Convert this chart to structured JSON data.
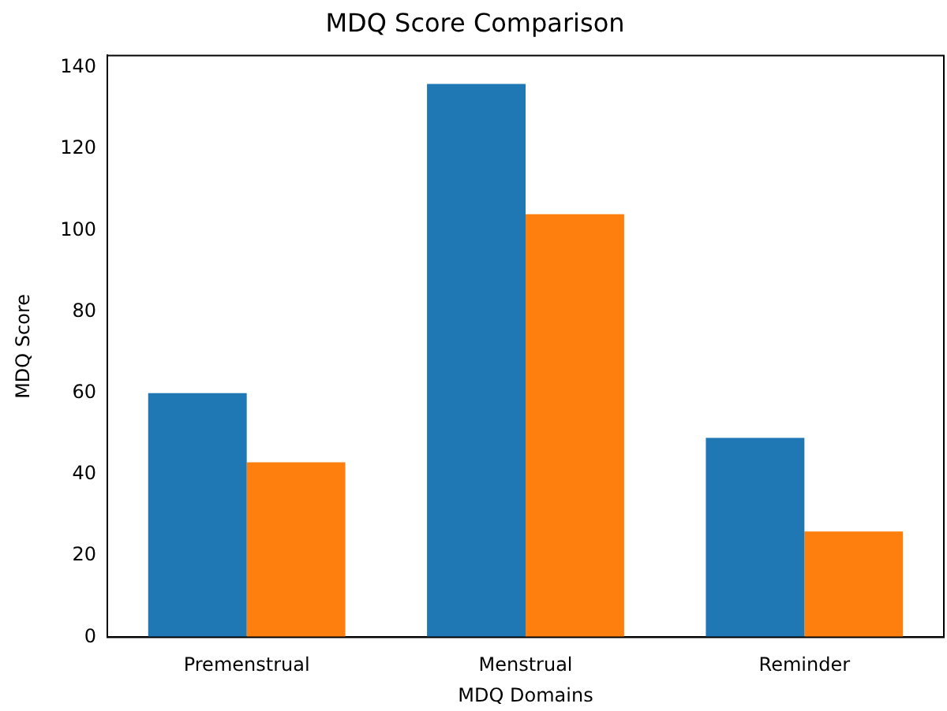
{
  "chart_data": {
    "type": "bar",
    "title": "MDQ Score Comparison",
    "xlabel": "MDQ Domains",
    "ylabel": "MDQ Score",
    "categories": [
      "Premenstrual",
      "Menstrual",
      "Reminder"
    ],
    "series": [
      {
        "color": "#1f77b4",
        "values": [
          60,
          136,
          49
        ]
      },
      {
        "color": "#ff7f0e",
        "values": [
          43,
          104,
          26
        ]
      }
    ],
    "ylim": [
      0,
      143
    ],
    "yticks": [
      0,
      20,
      40,
      60,
      80,
      100,
      120,
      140
    ],
    "grid": false,
    "legend": false
  }
}
